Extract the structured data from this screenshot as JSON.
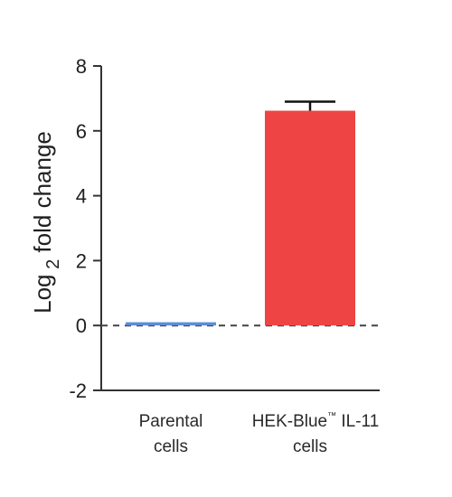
{
  "chart_data": {
    "type": "bar",
    "categories": [
      "Parental cells",
      "HEK-Blue IL-11 cells"
    ],
    "category_lines": [
      [
        "Parental",
        "cells"
      ],
      [
        "HEK-Blue",
        "™",
        " IL-11",
        "cells"
      ]
    ],
    "values": [
      0.1,
      6.62
    ],
    "error": [
      0.0,
      0.28
    ],
    "ylabel": {
      "main": "Log",
      "subscript": "2",
      "rest": " fold change"
    },
    "ylim": [
      -2,
      8
    ],
    "yticks": [
      -2,
      0,
      2,
      4,
      6,
      8
    ],
    "baseline": 0,
    "colors": [
      "#5b8fd6",
      "#ee4444"
    ],
    "axis_color": "#333333",
    "baseline_style": "dashed",
    "grid": false,
    "legend": "none"
  }
}
